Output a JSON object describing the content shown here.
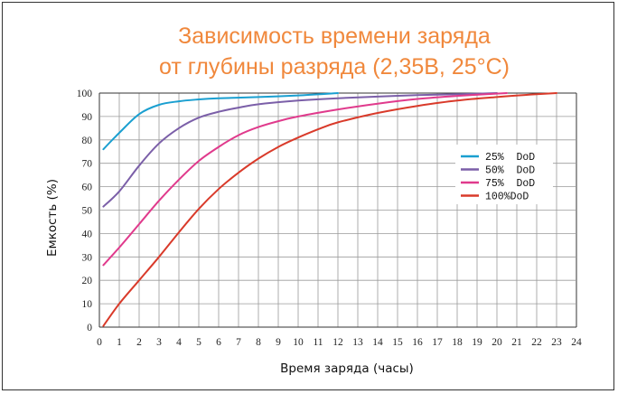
{
  "chart_data": {
    "type": "line",
    "title_line1": "Зависимость времени заряда",
    "title_line2": "от глубины разряда (2,35В, 25°C)",
    "xlabel": "Время заряда (часы)",
    "ylabel": "Емкость (%)",
    "xlim": [
      0,
      24
    ],
    "ylim": [
      0,
      100
    ],
    "x_ticks": [
      "0",
      "1",
      "2",
      "3",
      "4",
      "5",
      "6",
      "7",
      "8",
      "9",
      "10",
      "11",
      "12",
      "13",
      "14",
      "15",
      "16",
      "17",
      "18",
      "19",
      "20",
      "21",
      "22",
      "23",
      "24"
    ],
    "y_ticks": [
      "0",
      "10",
      "20",
      "30",
      "40",
      "50",
      "60",
      "70",
      "80",
      "90",
      "100"
    ],
    "grid": true,
    "legend_position": "right",
    "series": [
      {
        "name": "25%  DoD",
        "color": "#1a9fd0",
        "x": [
          0.2,
          1,
          2,
          3,
          4,
          5,
          6,
          8,
          10,
          12
        ],
        "y": [
          76,
          83,
          91,
          95,
          96.5,
          97.3,
          97.8,
          98.3,
          99,
          100
        ]
      },
      {
        "name": "50%  DoD",
        "color": "#7b5fa8",
        "x": [
          0.2,
          1,
          2,
          3,
          4,
          5,
          6,
          7,
          8,
          10,
          12,
          14,
          16,
          18,
          20
        ],
        "y": [
          51.5,
          58,
          69,
          78.5,
          85,
          89.5,
          92,
          93.8,
          95.2,
          96.8,
          97.8,
          98.5,
          99.1,
          99.5,
          100
        ]
      },
      {
        "name": "75%  DoD",
        "color": "#e03a8c",
        "x": [
          0.2,
          1,
          2,
          3,
          4,
          5,
          6,
          7,
          8,
          9,
          10,
          12,
          14,
          16,
          18,
          20.5
        ],
        "y": [
          26.5,
          34,
          44,
          54,
          63,
          71,
          77,
          82,
          85.5,
          88,
          90,
          93,
          95.5,
          97.5,
          98.8,
          100
        ]
      },
      {
        "name": "100%DoD",
        "color": "#d93a2a",
        "x": [
          0.2,
          1,
          2,
          3,
          4,
          5,
          6,
          7,
          8,
          9,
          10,
          11,
          12,
          14,
          16,
          18,
          20,
          22,
          23
        ],
        "y": [
          0.5,
          10,
          20,
          30,
          40.5,
          50.5,
          59,
          66,
          72,
          77,
          81,
          84.5,
          87.5,
          91.5,
          94.5,
          96.8,
          98.3,
          99.5,
          100
        ]
      }
    ]
  }
}
